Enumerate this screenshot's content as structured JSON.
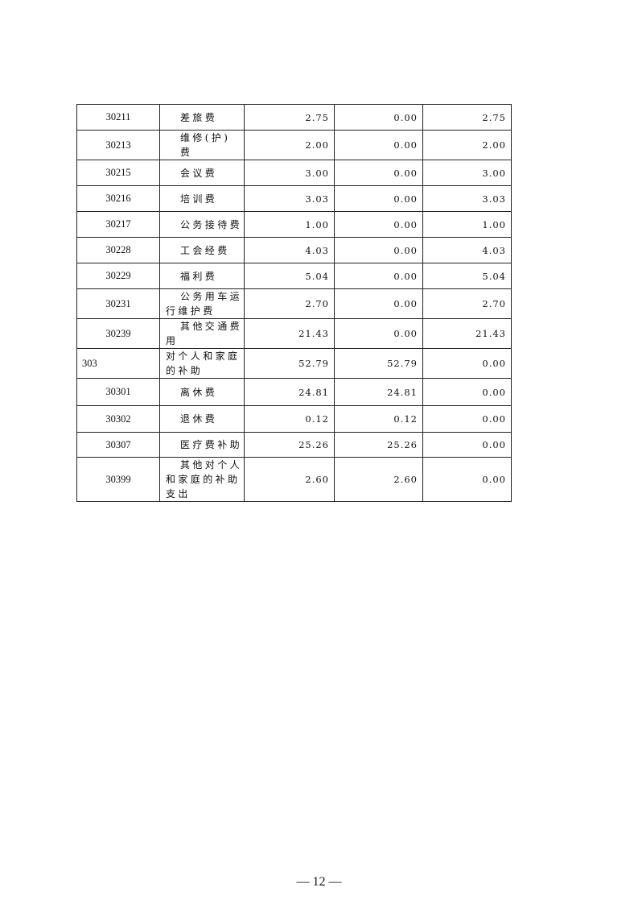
{
  "table": {
    "rows": [
      {
        "code": "30211",
        "name": "差旅费",
        "total": "2.75",
        "basic": "0.00",
        "project": "2.75",
        "h": 32,
        "level": 2
      },
      {
        "code": "30213",
        "name": "维修(护)费",
        "total": "2.00",
        "basic": "0.00",
        "project": "2.00",
        "h": 32,
        "level": 2
      },
      {
        "code": "30215",
        "name": "会议费",
        "total": "3.00",
        "basic": "0.00",
        "project": "3.00",
        "h": 32,
        "level": 2
      },
      {
        "code": "30216",
        "name": "培训费",
        "total": "3.03",
        "basic": "0.00",
        "project": "3.03",
        "h": 32,
        "level": 2
      },
      {
        "code": "30217",
        "name": "公务接待费",
        "total": "1.00",
        "basic": "0.00",
        "project": "1.00",
        "h": 32,
        "level": 2
      },
      {
        "code": "30228",
        "name": "工会经费",
        "total": "4.03",
        "basic": "0.00",
        "project": "4.03",
        "h": 32,
        "level": 2
      },
      {
        "code": "30229",
        "name": "福利费",
        "total": "5.04",
        "basic": "0.00",
        "project": "5.04",
        "h": 32,
        "level": 2
      },
      {
        "code": "30231",
        "name": "公务用车运\n行维护费",
        "total": "2.70",
        "basic": "0.00",
        "project": "2.70",
        "h": 36,
        "level": 2
      },
      {
        "code": "30239",
        "name": "其他交通费\n用",
        "total": "21.43",
        "basic": "0.00",
        "project": "21.43",
        "h": 34,
        "level": 2
      },
      {
        "code": "303",
        "name": "对个人和家庭\n的补助",
        "total": "52.79",
        "basic": "52.79",
        "project": "0.00",
        "h": 35,
        "level": 1
      },
      {
        "code": "30301",
        "name": "离休费",
        "total": "24.81",
        "basic": "24.81",
        "project": "0.00",
        "h": 34,
        "level": 2
      },
      {
        "code": "30302",
        "name": "退休费",
        "total": "0.12",
        "basic": "0.12",
        "project": "0.00",
        "h": 33,
        "level": 2
      },
      {
        "code": "30307",
        "name": "医疗费补助",
        "total": "25.26",
        "basic": "25.26",
        "project": "0.00",
        "h": 31,
        "level": 2
      },
      {
        "code": "30399",
        "name": "其他对个人\n和家庭的补助\n支出",
        "total": "2.60",
        "basic": "2.60",
        "project": "0.00",
        "h": 52,
        "level": 2
      }
    ]
  },
  "footer": {
    "page_number": "— 12 —"
  }
}
